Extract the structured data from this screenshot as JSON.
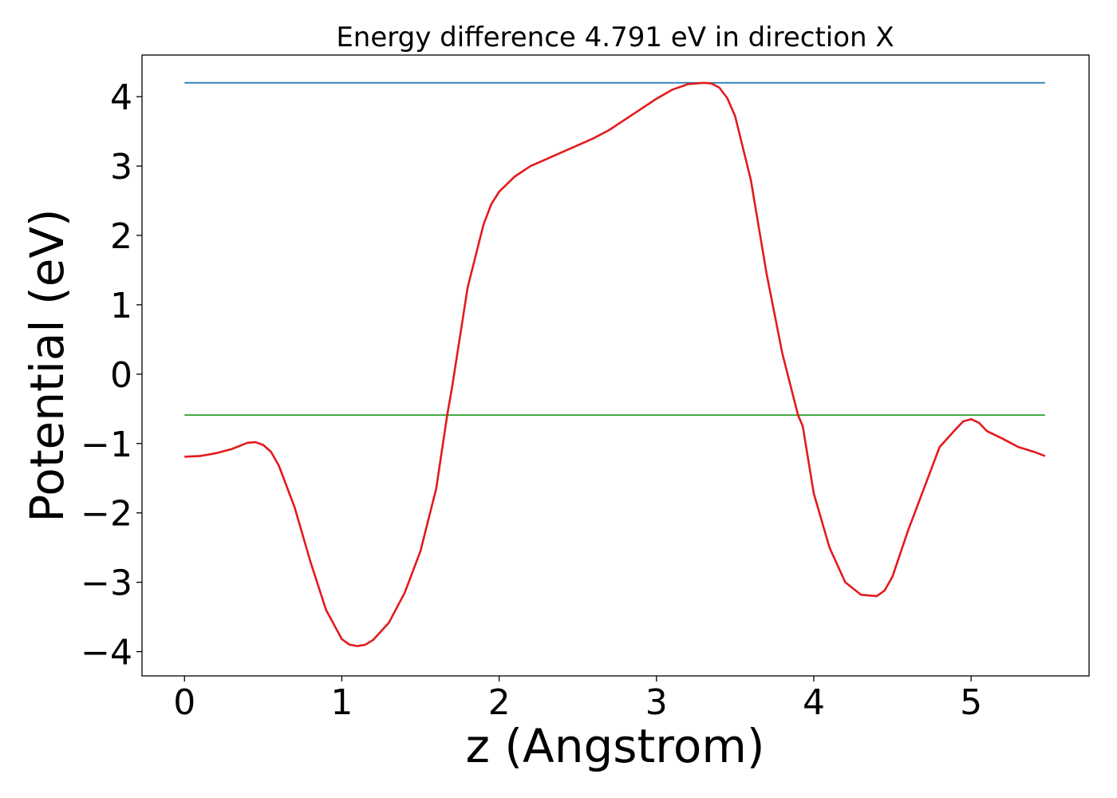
{
  "chart_data": {
    "type": "line",
    "title": "Energy difference 4.791 eV in direction X",
    "xlabel": "z (Angstrom)",
    "ylabel": "Potential (eV)",
    "xlim": [
      -0.27,
      5.75
    ],
    "ylim": [
      -4.35,
      4.6
    ],
    "xticks": [
      0,
      1,
      2,
      3,
      4,
      5
    ],
    "xtick_labels": [
      "0",
      "1",
      "2",
      "3",
      "4",
      "5"
    ],
    "yticks": [
      4,
      3,
      2,
      1,
      0,
      -1,
      -2,
      -3,
      -4
    ],
    "ytick_labels": [
      "4",
      "3",
      "2",
      "1",
      "0",
      "−1",
      "−2",
      "−3",
      "−4"
    ],
    "grid": false,
    "series": [
      {
        "color": "#1f77b4",
        "x": [
          0,
          5.47
        ],
        "y": [
          4.2,
          4.2
        ]
      },
      {
        "color": "#2ca02c",
        "x": [
          0,
          5.47
        ],
        "y": [
          -0.59,
          -0.59
        ]
      },
      {
        "color": "#e31a1c",
        "x": [
          0,
          0.1,
          0.2,
          0.3,
          0.4,
          0.45,
          0.5,
          0.55,
          0.6,
          0.7,
          0.8,
          0.9,
          1.0,
          1.05,
          1.1,
          1.15,
          1.2,
          1.3,
          1.4,
          1.5,
          1.6,
          1.67,
          1.7,
          1.8,
          1.9,
          1.95,
          2.0,
          2.1,
          2.2,
          2.3,
          2.4,
          2.5,
          2.6,
          2.7,
          2.8,
          2.9,
          3.0,
          3.1,
          3.2,
          3.3,
          3.35,
          3.4,
          3.45,
          3.5,
          3.6,
          3.7,
          3.8,
          3.9,
          3.93,
          4.0,
          4.1,
          4.2,
          4.3,
          4.4,
          4.45,
          4.5,
          4.6,
          4.7,
          4.8,
          4.9,
          4.95,
          5.0,
          5.05,
          5.1,
          5.2,
          5.3,
          5.4,
          5.47
        ],
        "y": [
          -1.19,
          -1.18,
          -1.14,
          -1.08,
          -0.99,
          -0.98,
          -1.02,
          -1.12,
          -1.32,
          -1.92,
          -2.7,
          -3.4,
          -3.82,
          -3.9,
          -3.92,
          -3.9,
          -3.83,
          -3.58,
          -3.15,
          -2.55,
          -1.65,
          -0.59,
          -0.2,
          1.25,
          2.15,
          2.45,
          2.63,
          2.85,
          3.0,
          3.1,
          3.2,
          3.3,
          3.4,
          3.52,
          3.67,
          3.82,
          3.97,
          4.1,
          4.18,
          4.2,
          4.19,
          4.13,
          3.98,
          3.72,
          2.8,
          1.45,
          0.3,
          -0.59,
          -0.75,
          -1.72,
          -2.5,
          -3.0,
          -3.18,
          -3.2,
          -3.12,
          -2.92,
          -2.25,
          -1.65,
          -1.05,
          -0.8,
          -0.68,
          -0.65,
          -0.7,
          -0.82,
          -0.93,
          -1.05,
          -1.12,
          -1.18
        ]
      }
    ]
  }
}
